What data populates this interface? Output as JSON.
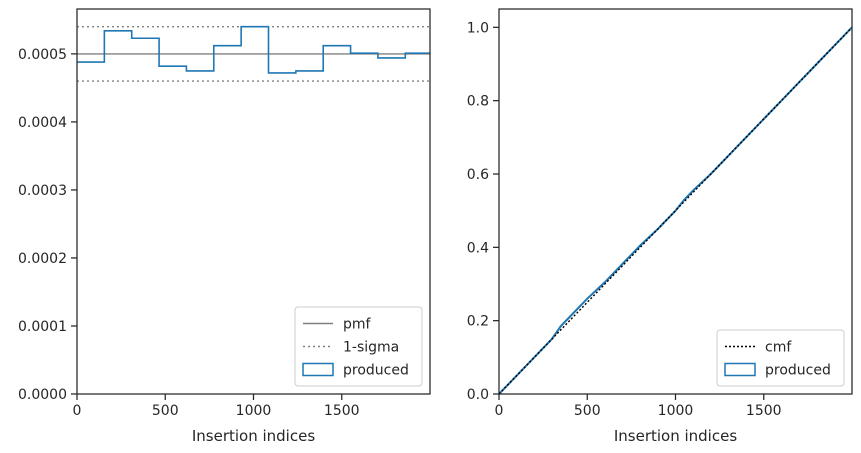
{
  "chart_data": [
    {
      "type": "histogram-step",
      "xlabel": "Insertion indices",
      "ylabel": "",
      "title": "",
      "xlim": [
        0,
        2000
      ],
      "ylim": [
        0,
        0.000566
      ],
      "xticks": [
        0,
        500,
        1000,
        1500
      ],
      "xtick_labels": [
        "0",
        "500",
        "1000",
        "1500"
      ],
      "yticks": [
        0,
        0.0001,
        0.0002,
        0.0003,
        0.0004,
        0.0005
      ],
      "ytick_labels": [
        "0.0000",
        "0.0001",
        "0.0002",
        "0.0003",
        "0.0004",
        "0.0005"
      ],
      "legend_position": "lower right",
      "legend": [
        "pmf",
        "1-sigma",
        "produced"
      ],
      "pmf": 0.0005,
      "sigma_band": [
        0.00046,
        0.00054
      ],
      "bin_edges": [
        0,
        155,
        310,
        465,
        620,
        775,
        930,
        1085,
        1240,
        1395,
        1550,
        1705,
        1860,
        2000
      ],
      "produced": [
        0.000488,
        0.000534,
        0.000523,
        0.000482,
        0.000475,
        0.000512,
        0.00054,
        0.000472,
        0.000475,
        0.000512,
        0.000501,
        0.000494,
        0.000501
      ],
      "colors": {
        "produced": "#1f77b4",
        "pmf": "#808080",
        "sigma": "#808080"
      }
    },
    {
      "type": "line",
      "xlabel": "Insertion indices",
      "ylabel": "",
      "title": "",
      "xlim": [
        0,
        2000
      ],
      "ylim": [
        0,
        1.05
      ],
      "xticks": [
        0,
        500,
        1000,
        1500
      ],
      "xtick_labels": [
        "0",
        "500",
        "1000",
        "1500"
      ],
      "yticks": [
        0,
        0.2,
        0.4,
        0.6,
        0.8,
        1.0
      ],
      "ytick_labels": [
        "0.0",
        "0.2",
        "0.4",
        "0.6",
        "0.8",
        "1.0"
      ],
      "legend_position": "lower right",
      "legend": [
        "cmf",
        "produced"
      ],
      "cmf": {
        "x": [
          0,
          2000
        ],
        "y": [
          0,
          1
        ]
      },
      "produced": {
        "x": [
          0,
          100,
          200,
          300,
          350,
          400,
          500,
          600,
          700,
          800,
          900,
          1000,
          1050,
          1100,
          1200,
          1300,
          1400,
          1500,
          1600,
          1700,
          1800,
          1900,
          2000
        ],
        "y": [
          0,
          0.05,
          0.1,
          0.15,
          0.185,
          0.21,
          0.26,
          0.305,
          0.355,
          0.405,
          0.45,
          0.5,
          0.53,
          0.555,
          0.6,
          0.65,
          0.7,
          0.75,
          0.8,
          0.85,
          0.9,
          0.95,
          1.0
        ]
      },
      "colors": {
        "produced": "#1f77b4",
        "cmf": "#000000"
      }
    }
  ]
}
